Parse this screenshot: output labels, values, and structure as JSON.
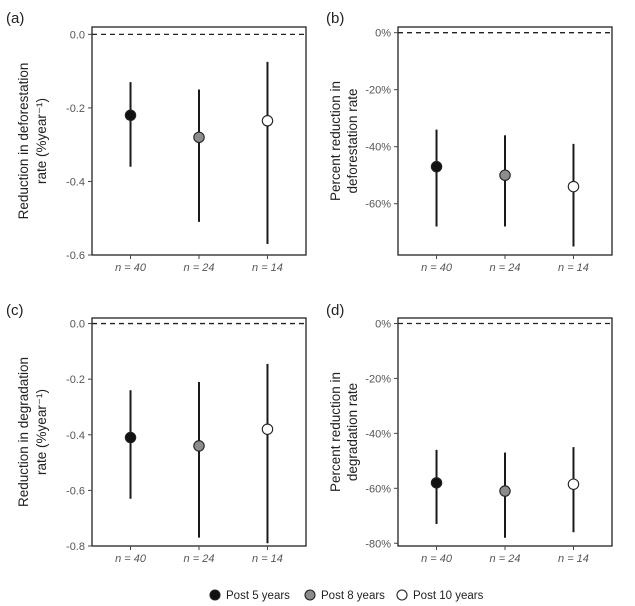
{
  "legend": [
    {
      "label": "Post 5 years",
      "color": "#111111"
    },
    {
      "label": "Post 8 years",
      "color": "#8c8c8c"
    },
    {
      "label": "Post 10 years",
      "color": "#ffffff"
    }
  ],
  "chart_data": [
    {
      "panel": "(a)",
      "type": "scatter",
      "ylabel_lines": [
        "Reduction in  deforestation",
        "rate (%year⁻¹)"
      ],
      "categories": [
        "n = 40",
        "n = 24",
        "n = 14"
      ],
      "yticks": [
        0.0,
        -0.2,
        -0.4,
        -0.6
      ],
      "ytick_labels": [
        "0.0",
        "-0.2",
        "-0.4",
        "-0.6"
      ],
      "ylim": [
        -0.6,
        0.0
      ],
      "reference_line": 0.0,
      "points": [
        {
          "category": "n = 40",
          "series": "Post 5 years",
          "y": -0.22,
          "low": -0.36,
          "high": -0.13
        },
        {
          "category": "n = 24",
          "series": "Post 8 years",
          "y": -0.28,
          "low": -0.51,
          "high": -0.15
        },
        {
          "category": "n = 14",
          "series": "Post 10 years",
          "y": -0.235,
          "low": -0.57,
          "high": -0.075
        }
      ]
    },
    {
      "panel": "(b)",
      "type": "scatter",
      "ylabel_lines": [
        "Percent reduction in",
        "deforestation rate"
      ],
      "categories": [
        "n = 40",
        "n = 24",
        "n = 14"
      ],
      "yticks": [
        0,
        -20,
        -40,
        -60
      ],
      "ytick_labels": [
        "0%",
        "-20%",
        "-40%",
        "-60%"
      ],
      "ylim": [
        -78,
        0
      ],
      "reference_line": 0,
      "points": [
        {
          "category": "n = 40",
          "series": "Post 5 years",
          "y": -47,
          "low": -68,
          "high": -34
        },
        {
          "category": "n = 24",
          "series": "Post 8 years",
          "y": -50,
          "low": -68,
          "high": -36
        },
        {
          "category": "n = 14",
          "series": "Post 10 years",
          "y": -54,
          "low": -75,
          "high": -39
        }
      ]
    },
    {
      "panel": "(c)",
      "type": "scatter",
      "ylabel_lines": [
        "Reduction in  degradation",
        "rate (%year⁻¹)"
      ],
      "categories": [
        "n = 40",
        "n = 24",
        "n = 14"
      ],
      "yticks": [
        0.0,
        -0.2,
        -0.4,
        -0.6,
        -0.8
      ],
      "ytick_labels": [
        "0.0",
        "-0.2",
        "-0.4",
        "-0.6",
        "-0.8"
      ],
      "ylim": [
        -0.8,
        0.0
      ],
      "reference_line": 0.0,
      "points": [
        {
          "category": "n = 40",
          "series": "Post 5 years",
          "y": -0.41,
          "low": -0.63,
          "high": -0.24
        },
        {
          "category": "n = 24",
          "series": "Post 8 years",
          "y": -0.44,
          "low": -0.77,
          "high": -0.21
        },
        {
          "category": "n = 14",
          "series": "Post 10 years",
          "y": -0.38,
          "low": -0.79,
          "high": -0.145
        }
      ]
    },
    {
      "panel": "(d)",
      "type": "scatter",
      "ylabel_lines": [
        "Percent reduction in",
        "degradation rate"
      ],
      "categories": [
        "n = 40",
        "n = 24",
        "n = 14"
      ],
      "yticks": [
        0,
        -20,
        -40,
        -60,
        -80
      ],
      "ytick_labels": [
        "0%",
        "-20%",
        "-40%",
        "-60%",
        "-80%"
      ],
      "ylim": [
        -81,
        0
      ],
      "reference_line": 0,
      "points": [
        {
          "category": "n = 40",
          "series": "Post 5 years",
          "y": -58,
          "low": -73,
          "high": -46
        },
        {
          "category": "n = 24",
          "series": "Post 8 years",
          "y": -61,
          "low": -78,
          "high": -47
        },
        {
          "category": "n = 14",
          "series": "Post 10 years",
          "y": -58.5,
          "low": -76,
          "high": -45
        }
      ]
    }
  ]
}
